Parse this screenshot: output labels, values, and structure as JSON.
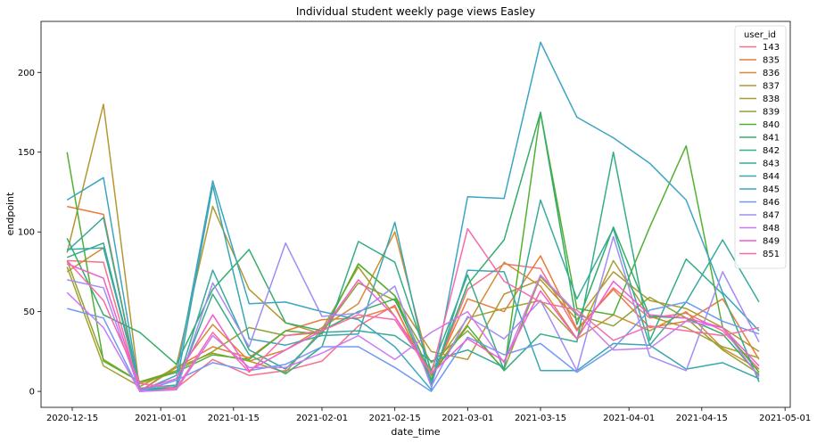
{
  "chart_data": {
    "type": "line",
    "title": "Individual student weekly page views Easley",
    "xlabel": "date_time",
    "ylabel": "endpoint",
    "legend_title": "user_id",
    "legend_position": "top-right",
    "grid": false,
    "xlim": [
      "2020-12-09",
      "2021-05-02"
    ],
    "ylim": [
      -10,
      232
    ],
    "y_ticks": [
      0,
      50,
      100,
      150,
      200
    ],
    "x_ticks": [
      "2020-12-15",
      "2021-01-01",
      "2021-01-15",
      "2021-02-01",
      "2021-02-15",
      "2021-03-01",
      "2021-03-15",
      "2021-04-01",
      "2021-04-15",
      "2021-05-01"
    ],
    "x": [
      "2020-12-14",
      "2020-12-21",
      "2020-12-28",
      "2021-01-04",
      "2021-01-11",
      "2021-01-18",
      "2021-01-25",
      "2021-02-01",
      "2021-02-08",
      "2021-02-15",
      "2021-02-22",
      "2021-03-01",
      "2021-03-08",
      "2021-03-15",
      "2021-03-22",
      "2021-03-29",
      "2021-04-05",
      "2021-04-12",
      "2021-04-19",
      "2021-04-26"
    ],
    "series": [
      {
        "name": "143",
        "color": "#f77189",
        "values": [
          82,
          81,
          0,
          2,
          20,
          10,
          13,
          19,
          41,
          54,
          6,
          64,
          80,
          77,
          38,
          65,
          46,
          49,
          38,
          14
        ]
      },
      {
        "name": "835",
        "color": "#ec7a3b",
        "values": [
          116,
          111,
          0,
          15,
          28,
          21,
          38,
          45,
          46,
          53,
          8,
          58,
          50,
          85,
          39,
          64,
          40,
          44,
          58,
          20
        ]
      },
      {
        "name": "836",
        "color": "#d58c32",
        "values": [
          75,
          90,
          5,
          12,
          42,
          19,
          26,
          40,
          55,
          100,
          11,
          42,
          81,
          66,
          33,
          48,
          38,
          50,
          27,
          14
        ]
      },
      {
        "name": "837",
        "color": "#b69632",
        "values": [
          87,
          180,
          0,
          16,
          116,
          64,
          43,
          36,
          80,
          60,
          25,
          20,
          61,
          70,
          45,
          75,
          57,
          52,
          40,
          25
        ]
      },
      {
        "name": "838",
        "color": "#a4a031",
        "values": [
          78,
          16,
          3,
          15,
          24,
          19,
          12,
          39,
          78,
          47,
          13,
          46,
          52,
          57,
          33,
          82,
          47,
          40,
          28,
          21
        ]
      },
      {
        "name": "839",
        "color": "#8fa331",
        "values": [
          82,
          20,
          6,
          13,
          25,
          40,
          35,
          37,
          68,
          57,
          18,
          38,
          14,
          72,
          48,
          41,
          59,
          46,
          26,
          11
        ]
      },
      {
        "name": "840",
        "color": "#50b131",
        "values": [
          150,
          19,
          6,
          12,
          23,
          20,
          38,
          36,
          80,
          60,
          10,
          41,
          13,
          175,
          52,
          48,
          103,
          154,
          40,
          12
        ]
      },
      {
        "name": "841",
        "color": "#35ad6a",
        "values": [
          96,
          48,
          37,
          17,
          64,
          89,
          43,
          38,
          50,
          58,
          7,
          67,
          95,
          175,
          42,
          103,
          47,
          46,
          36,
          10
        ]
      },
      {
        "name": "842",
        "color": "#36ac88",
        "values": [
          84,
          93,
          1,
          3,
          61,
          23,
          11,
          28,
          94,
          81,
          13,
          73,
          13,
          36,
          31,
          150,
          32,
          83,
          61,
          6
        ]
      },
      {
        "name": "843",
        "color": "#38aa9c",
        "values": [
          88,
          109,
          0,
          3,
          76,
          26,
          14,
          37,
          38,
          35,
          19,
          26,
          15,
          120,
          58,
          102,
          29,
          56,
          95,
          56
        ]
      },
      {
        "name": "844",
        "color": "#3aa7ae",
        "values": [
          89,
          90,
          2,
          4,
          129,
          33,
          29,
          35,
          36,
          106,
          4,
          76,
          75,
          13,
          13,
          30,
          29,
          14,
          18,
          8
        ]
      },
      {
        "name": "845",
        "color": "#3ca5c3",
        "values": [
          120,
          134,
          0,
          10,
          132,
          55,
          56,
          50,
          45,
          28,
          1,
          122,
          121,
          219,
          172,
          159,
          143,
          120,
          62,
          38
        ]
      },
      {
        "name": "846",
        "color": "#6e9af3",
        "values": [
          52,
          46,
          0,
          7,
          18,
          13,
          17,
          28,
          28,
          15,
          0,
          34,
          23,
          30,
          12,
          27,
          51,
          56,
          44,
          36
        ]
      },
      {
        "name": "847",
        "color": "#a38cf4",
        "values": [
          70,
          65,
          0,
          1,
          68,
          28,
          93,
          47,
          49,
          66,
          3,
          47,
          33,
          57,
          13,
          97,
          22,
          13,
          75,
          31
        ]
      },
      {
        "name": "848",
        "color": "#cc7af4",
        "values": [
          62,
          40,
          0,
          1,
          35,
          15,
          15,
          24,
          35,
          20,
          37,
          50,
          18,
          73,
          49,
          26,
          27,
          44,
          40,
          9
        ]
      },
      {
        "name": "849",
        "color": "#f45cd0",
        "values": [
          80,
          71,
          1,
          8,
          48,
          13,
          26,
          38,
          70,
          47,
          11,
          33,
          19,
          63,
          33,
          69,
          48,
          46,
          40,
          16
        ]
      },
      {
        "name": "851",
        "color": "#f66bab",
        "values": [
          82,
          57,
          5,
          2,
          37,
          12,
          35,
          38,
          48,
          45,
          11,
          102,
          69,
          56,
          51,
          32,
          41,
          38,
          35,
          40
        ]
      }
    ]
  }
}
